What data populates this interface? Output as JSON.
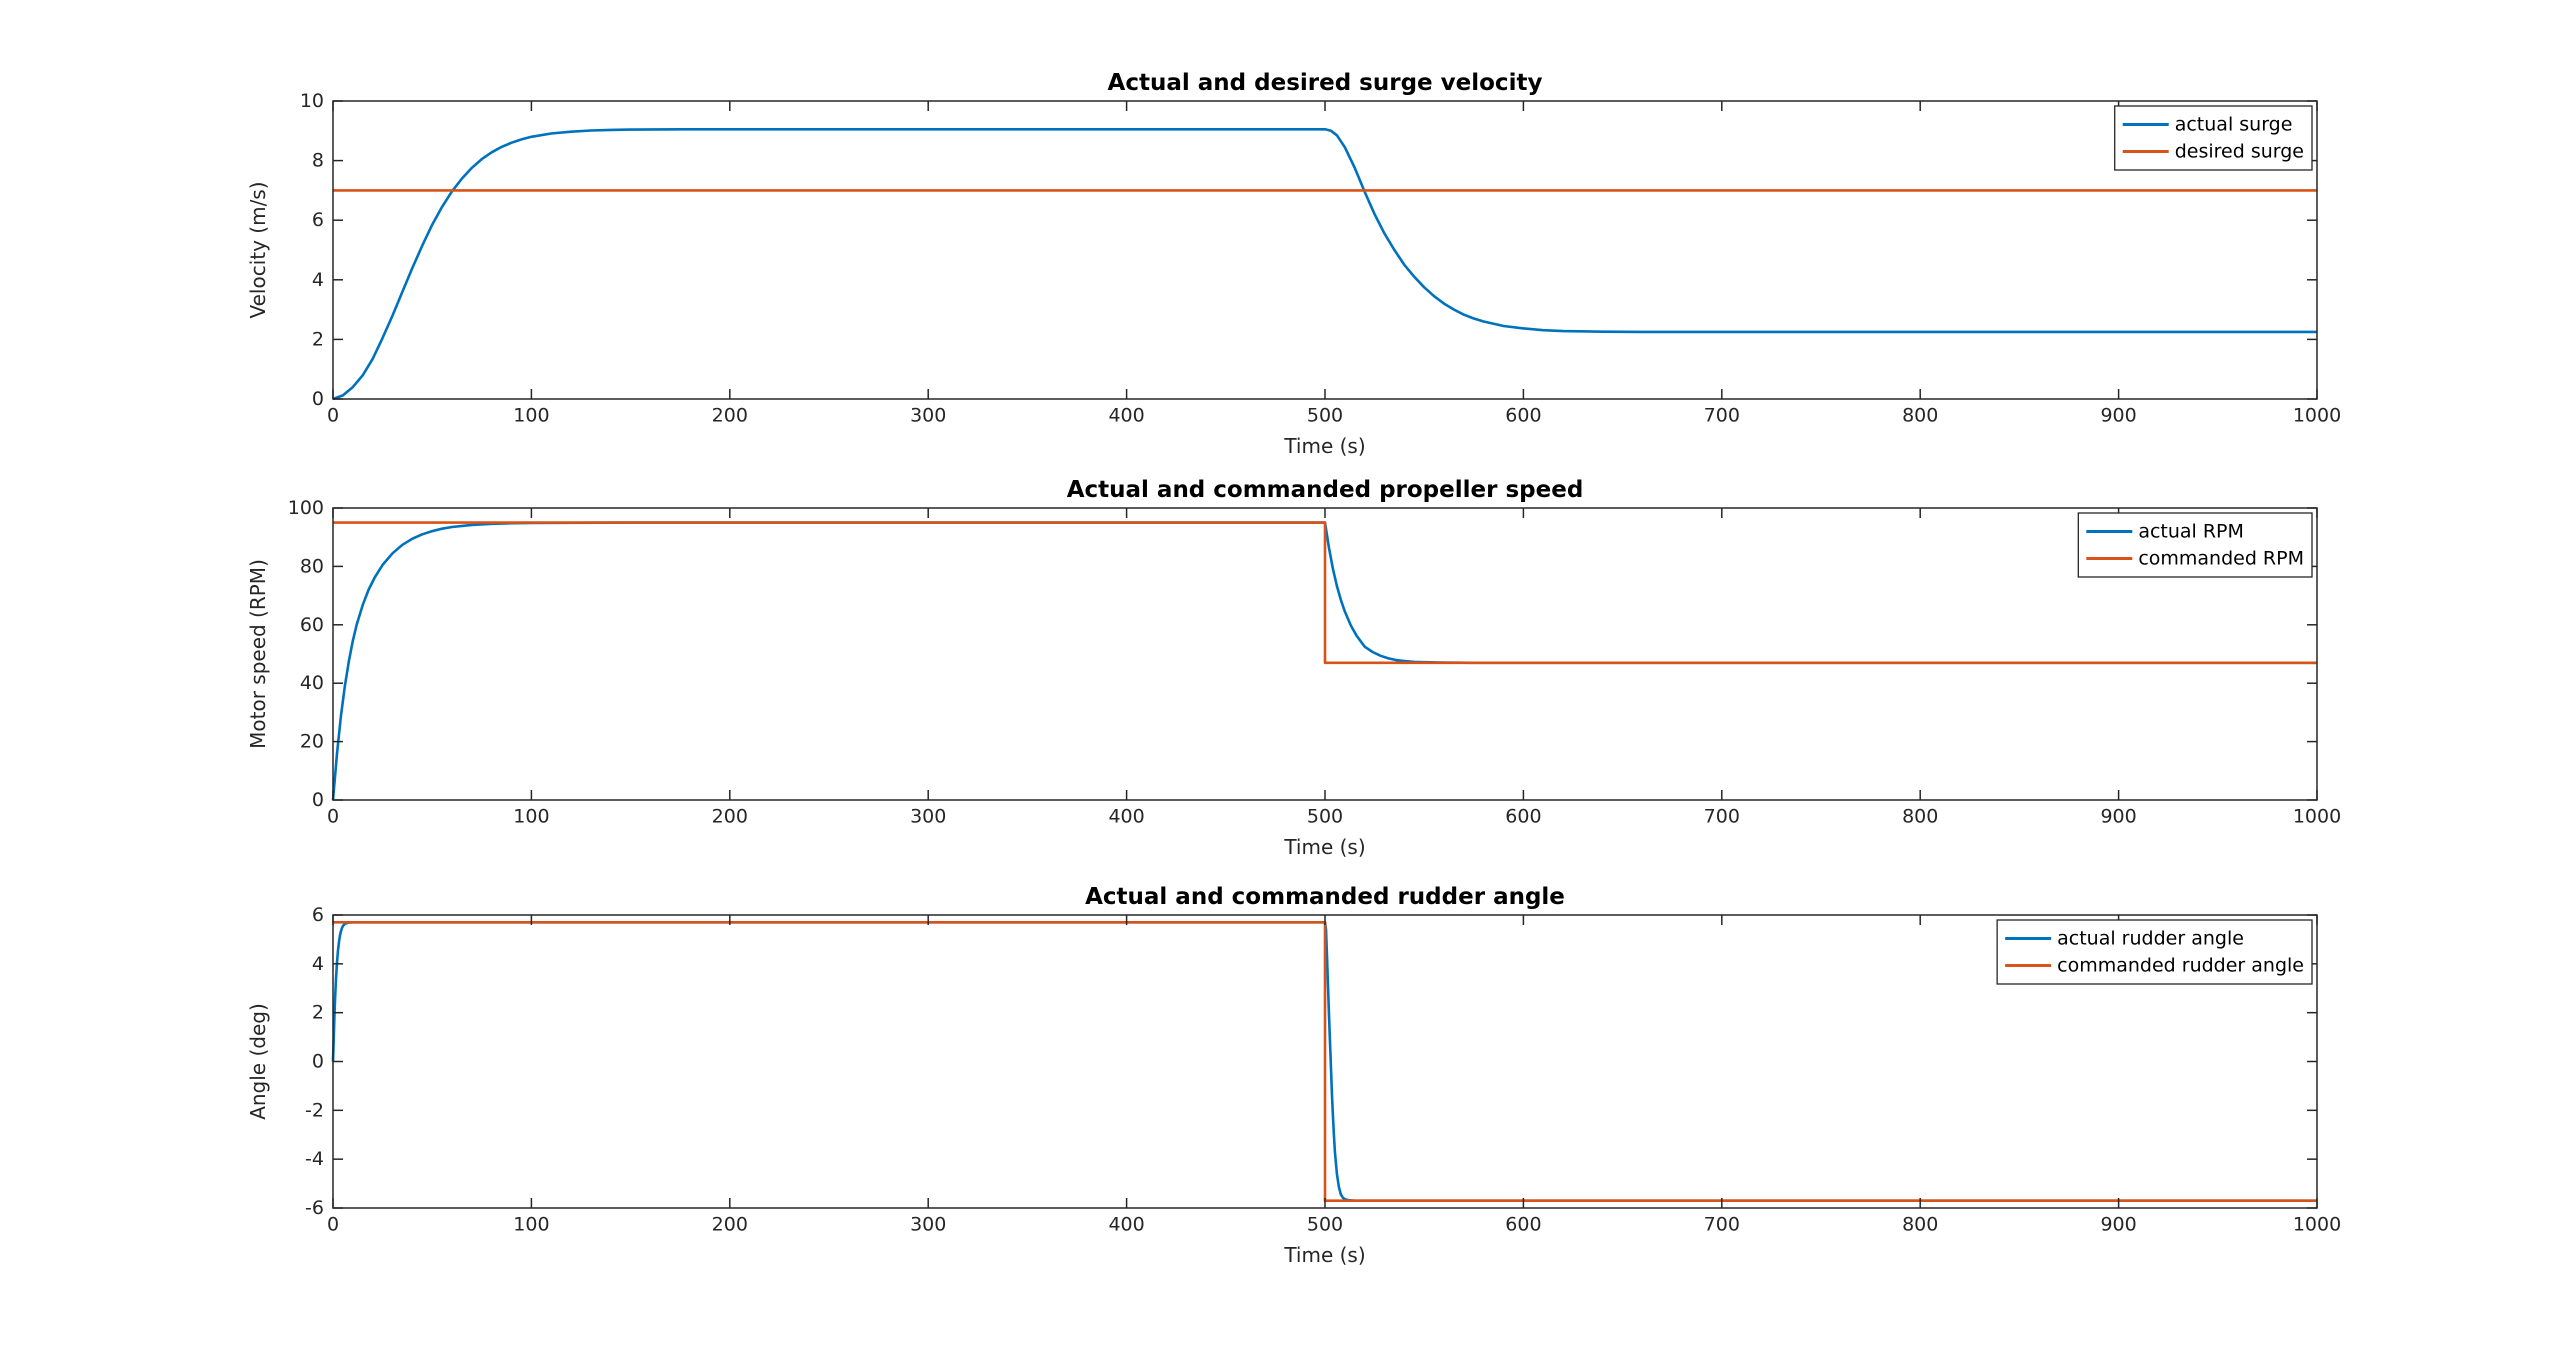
{
  "colors": {
    "series_blue": "#0072BD",
    "series_orange": "#D95319",
    "axis": "#262626",
    "title_text": "#000000",
    "legend_border": "#262626",
    "background": "#ffffff"
  },
  "chart_data": [
    {
      "type": "line",
      "title": "Actual and desired surge velocity",
      "xlabel": "Time (s)",
      "ylabel": "Velocity (m/s)",
      "xlim": [
        0,
        1000
      ],
      "ylim": [
        0,
        10
      ],
      "xticks": [
        0,
        100,
        200,
        300,
        400,
        500,
        600,
        700,
        800,
        900,
        1000
      ],
      "yticks": [
        0,
        2,
        4,
        6,
        8,
        10
      ],
      "grid": false,
      "legend_position": "top-right",
      "series": [
        {
          "name": "actual surge",
          "color": "#0072BD",
          "points": [
            [
              0,
              0
            ],
            [
              5,
              0.12
            ],
            [
              10,
              0.4
            ],
            [
              15,
              0.8
            ],
            [
              20,
              1.35
            ],
            [
              25,
              2.05
            ],
            [
              30,
              2.8
            ],
            [
              35,
              3.6
            ],
            [
              40,
              4.4
            ],
            [
              45,
              5.15
            ],
            [
              50,
              5.85
            ],
            [
              55,
              6.45
            ],
            [
              60,
              6.97
            ],
            [
              65,
              7.4
            ],
            [
              70,
              7.76
            ],
            [
              75,
              8.05
            ],
            [
              80,
              8.28
            ],
            [
              85,
              8.46
            ],
            [
              90,
              8.6
            ],
            [
              95,
              8.71
            ],
            [
              100,
              8.8
            ],
            [
              110,
              8.91
            ],
            [
              120,
              8.97
            ],
            [
              130,
              9.01
            ],
            [
              140,
              9.03
            ],
            [
              150,
              9.04
            ],
            [
              175,
              9.05
            ],
            [
              200,
              9.05
            ],
            [
              300,
              9.05
            ],
            [
              400,
              9.05
            ],
            [
              500,
              9.05
            ],
            [
              503,
              9.0
            ],
            [
              506,
              8.85
            ],
            [
              510,
              8.45
            ],
            [
              515,
              7.75
            ],
            [
              520,
              6.95
            ],
            [
              525,
              6.2
            ],
            [
              530,
              5.55
            ],
            [
              535,
              5.0
            ],
            [
              540,
              4.5
            ],
            [
              545,
              4.1
            ],
            [
              550,
              3.75
            ],
            [
              555,
              3.45
            ],
            [
              560,
              3.2
            ],
            [
              565,
              3.0
            ],
            [
              570,
              2.83
            ],
            [
              575,
              2.7
            ],
            [
              580,
              2.6
            ],
            [
              590,
              2.45
            ],
            [
              600,
              2.37
            ],
            [
              610,
              2.31
            ],
            [
              620,
              2.28
            ],
            [
              640,
              2.26
            ],
            [
              660,
              2.25
            ],
            [
              700,
              2.25
            ],
            [
              800,
              2.25
            ],
            [
              900,
              2.25
            ],
            [
              1000,
              2.25
            ]
          ]
        },
        {
          "name": "desired surge",
          "color": "#D95319",
          "points": [
            [
              0,
              7
            ],
            [
              1000,
              7
            ]
          ]
        }
      ]
    },
    {
      "type": "line",
      "title": "Actual and commanded propeller speed",
      "xlabel": "Time (s)",
      "ylabel": "Motor speed (RPM)",
      "xlim": [
        0,
        1000
      ],
      "ylim": [
        0,
        100
      ],
      "xticks": [
        0,
        100,
        200,
        300,
        400,
        500,
        600,
        700,
        800,
        900,
        1000
      ],
      "yticks": [
        0,
        20,
        40,
        60,
        80,
        100
      ],
      "grid": false,
      "legend_position": "top-right",
      "series": [
        {
          "name": "actual RPM",
          "color": "#0072BD",
          "points": [
            [
              0,
              0
            ],
            [
              2,
              15.9
            ],
            [
              4,
              28.7
            ],
            [
              6,
              39.1
            ],
            [
              8,
              47.6
            ],
            [
              10,
              54.5
            ],
            [
              12,
              60.2
            ],
            [
              15,
              66.9
            ],
            [
              18,
              72.1
            ],
            [
              21,
              76.2
            ],
            [
              25,
              80.5
            ],
            [
              30,
              84.5
            ],
            [
              35,
              87.4
            ],
            [
              40,
              89.5
            ],
            [
              45,
              91.0
            ],
            [
              50,
              92.1
            ],
            [
              55,
              92.9
            ],
            [
              60,
              93.5
            ],
            [
              70,
              94.2
            ],
            [
              80,
              94.6
            ],
            [
              90,
              94.8
            ],
            [
              100,
              94.9
            ],
            [
              150,
              95
            ],
            [
              200,
              95
            ],
            [
              300,
              95
            ],
            [
              400,
              95
            ],
            [
              500,
              95
            ],
            [
              502,
              86.3
            ],
            [
              504,
              79.2
            ],
            [
              506,
              73.3
            ],
            [
              508,
              68.5
            ],
            [
              510,
              64.6
            ],
            [
              513,
              59.8
            ],
            [
              516,
              56.2
            ],
            [
              520,
              52.5
            ],
            [
              524,
              50.7
            ],
            [
              528,
              49.4
            ],
            [
              532,
              48.5
            ],
            [
              536,
              47.9
            ],
            [
              540,
              47.6
            ],
            [
              545,
              47.3
            ],
            [
              550,
              47.2
            ],
            [
              560,
              47.1
            ],
            [
              575,
              47
            ],
            [
              600,
              47
            ],
            [
              700,
              47
            ],
            [
              800,
              47
            ],
            [
              900,
              47
            ],
            [
              1000,
              47
            ]
          ]
        },
        {
          "name": "commanded RPM",
          "color": "#D95319",
          "points": [
            [
              0,
              95
            ],
            [
              500,
              95
            ],
            [
              500,
              47
            ],
            [
              1000,
              47
            ]
          ]
        }
      ]
    },
    {
      "type": "line",
      "title": "Actual and commanded rudder angle",
      "xlabel": "Time (s)",
      "ylabel": "Angle (deg)",
      "xlim": [
        0,
        1000
      ],
      "ylim": [
        -6,
        6
      ],
      "xticks": [
        0,
        100,
        200,
        300,
        400,
        500,
        600,
        700,
        800,
        900,
        1000
      ],
      "yticks": [
        -6,
        -4,
        -2,
        0,
        2,
        4,
        6
      ],
      "grid": false,
      "legend_position": "top-right",
      "series": [
        {
          "name": "actual rudder angle",
          "color": "#0072BD",
          "points": [
            [
              0,
              0
            ],
            [
              0.7,
              1.8
            ],
            [
              1,
              2.5
            ],
            [
              1.5,
              3.4
            ],
            [
              2,
              4.05
            ],
            [
              2.5,
              4.55
            ],
            [
              3,
              4.9
            ],
            [
              3.5,
              5.15
            ],
            [
              4,
              5.33
            ],
            [
              4.5,
              5.46
            ],
            [
              5,
              5.55
            ],
            [
              6,
              5.64
            ],
            [
              7,
              5.67
            ],
            [
              8,
              5.69
            ],
            [
              10,
              5.7
            ],
            [
              100,
              5.7
            ],
            [
              200,
              5.7
            ],
            [
              300,
              5.7
            ],
            [
              400,
              5.7
            ],
            [
              500,
              5.7
            ],
            [
              500.5,
              5.4
            ],
            [
              501,
              4.3
            ],
            [
              501.5,
              3.1
            ],
            [
              502,
              1.9
            ],
            [
              502.5,
              0.8
            ],
            [
              503,
              -0.3
            ],
            [
              503.5,
              -1.3
            ],
            [
              504,
              -2.2
            ],
            [
              504.5,
              -3.0
            ],
            [
              505,
              -3.7
            ],
            [
              506,
              -4.6
            ],
            [
              507,
              -5.15
            ],
            [
              508,
              -5.45
            ],
            [
              509,
              -5.58
            ],
            [
              510,
              -5.64
            ],
            [
              512,
              -5.68
            ],
            [
              515,
              -5.7
            ],
            [
              600,
              -5.7
            ],
            [
              700,
              -5.7
            ],
            [
              800,
              -5.7
            ],
            [
              900,
              -5.7
            ],
            [
              1000,
              -5.7
            ]
          ]
        },
        {
          "name": "commanded rudder angle",
          "color": "#D95319",
          "points": [
            [
              0,
              5.7
            ],
            [
              500,
              5.7
            ],
            [
              500,
              -5.7
            ],
            [
              1000,
              -5.7
            ]
          ]
        }
      ]
    }
  ]
}
